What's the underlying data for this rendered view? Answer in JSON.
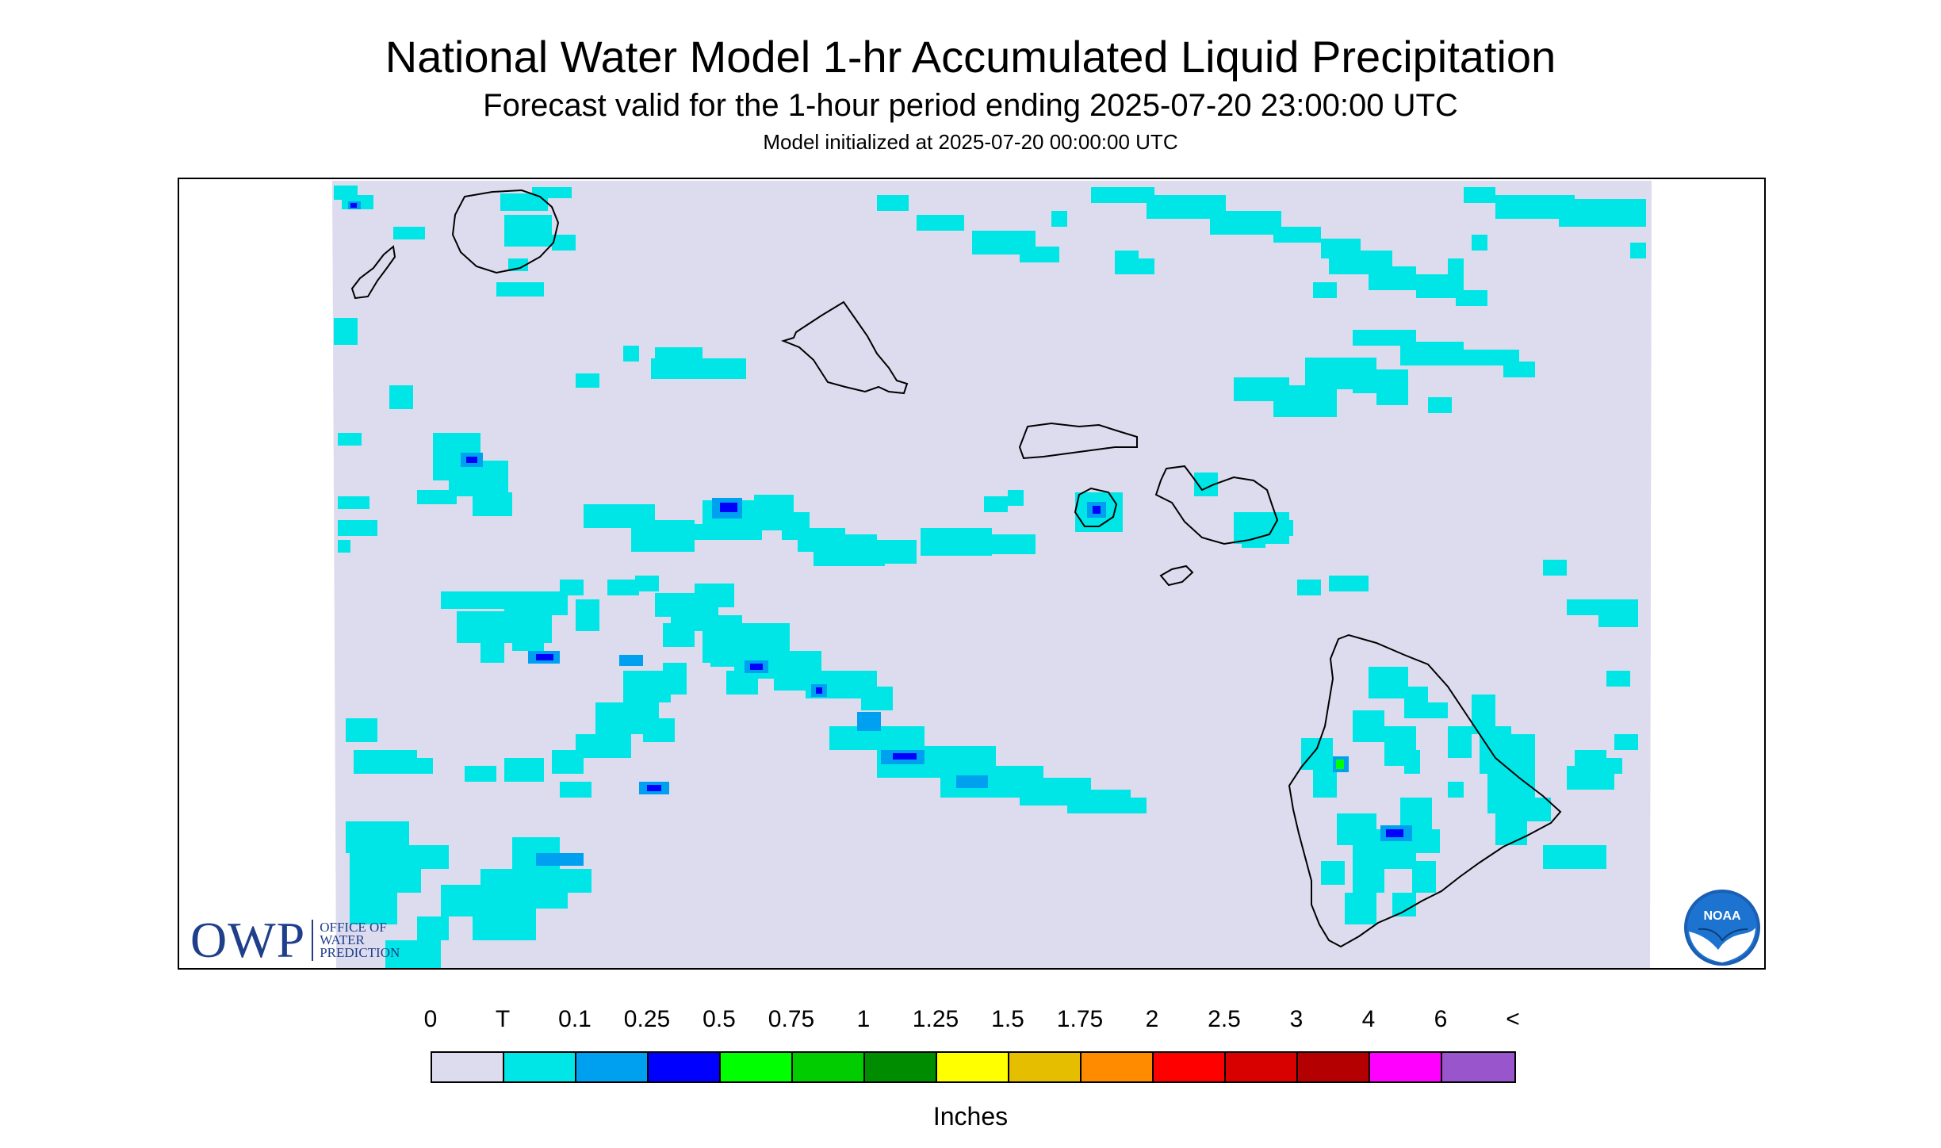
{
  "header": {
    "title": "National Water Model 1-hr Accumulated Liquid Precipitation",
    "subtitle": "Forecast valid for the 1-hour period ending 2025-07-20 23:00:00 UTC",
    "init_text": "Model initialized at 2025-07-20 00:00:00 UTC"
  },
  "map": {
    "background_color": "#dcdcee",
    "outline_color": "#000000",
    "islands": [
      "Niihau-Kauai",
      "Oahu",
      "Molokai",
      "Lanai",
      "Maui",
      "Kahoolawe",
      "Hawaii"
    ]
  },
  "logos": {
    "owp": {
      "mark": "OWP",
      "lines": [
        "OFFICE OF",
        "WATER",
        "PREDICTION"
      ]
    },
    "noaa": {
      "text": "NOAA"
    }
  },
  "legend": {
    "labels": [
      "0",
      "T",
      "0.1",
      "0.25",
      "0.5",
      "0.75",
      "1",
      "1.25",
      "1.5",
      "1.75",
      "2",
      "2.5",
      "3",
      "4",
      "6",
      "<"
    ],
    "colors": [
      "#dcdcee",
      "#00e6e6",
      "#00a0f0",
      "#0000ff",
      "#00ff00",
      "#00cc00",
      "#008c00",
      "#ffff00",
      "#e6be00",
      "#ff8c00",
      "#ff0000",
      "#d90000",
      "#b40000",
      "#ff00ff",
      "#9955cc"
    ],
    "units": "Inches"
  }
}
